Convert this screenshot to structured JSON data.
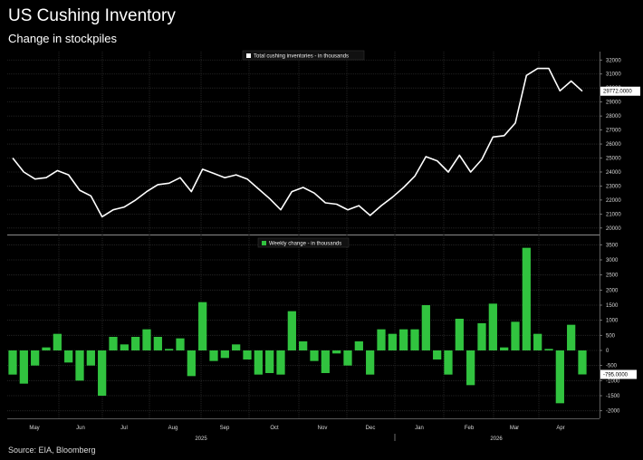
{
  "title": "US Cushing Inventory",
  "subtitle": "Change in stockpiles",
  "source": "Source: EIA, Bloomberg",
  "colors": {
    "line": "#ffffff",
    "bar": "#31c33f",
    "grid": "#2b2b2b",
    "background": "#000000"
  },
  "chart_data": [
    {
      "type": "line",
      "legend": "Total cushing inventories - in thousands",
      "legend_position": "top",
      "end_label": "29772.0000",
      "ylim": [
        19600,
        32600
      ],
      "yticks": [
        20000,
        21000,
        22000,
        23000,
        24000,
        25000,
        26000,
        27000,
        28000,
        29000,
        30000,
        31000,
        32000
      ],
      "grid": true,
      "series": [
        {
          "values": [
            25000,
            24000,
            23500,
            23600,
            24100,
            23800,
            22700,
            22300,
            20800,
            21300,
            21500,
            22000,
            22600,
            23100,
            23200,
            23600,
            22600,
            24200,
            23900,
            23600,
            23800,
            23500,
            22800,
            22100,
            21300,
            22600,
            22900,
            22500,
            21800,
            21700,
            21300,
            21600,
            20900,
            21600,
            22200,
            22900,
            23700,
            25100,
            24800,
            24000,
            25200,
            24000,
            24900,
            26500,
            26600,
            27500,
            30900,
            31400,
            31400,
            29800,
            30500,
            29772
          ]
        }
      ]
    },
    {
      "type": "bar",
      "legend": "Weekly change - in thousands",
      "legend_position": "top",
      "end_label": "-795.0000",
      "ylim": [
        -2250,
        3750
      ],
      "yticks": [
        -2000,
        -1500,
        -1000,
        -500,
        0,
        500,
        1000,
        1500,
        2000,
        2500,
        3000,
        3500
      ],
      "grid": true,
      "series": [
        {
          "values": [
            -800,
            -1100,
            -500,
            100,
            550,
            -400,
            -1000,
            -500,
            -1500,
            450,
            200,
            450,
            700,
            450,
            50,
            400,
            -850,
            1600,
            -350,
            -250,
            200,
            -300,
            -800,
            -750,
            -800,
            1300,
            300,
            -350,
            -750,
            -100,
            -500,
            300,
            -800,
            700,
            550,
            700,
            700,
            1500,
            -300,
            -800,
            1050,
            -1150,
            900,
            1550,
            100,
            950,
            3400,
            550,
            50,
            -1750,
            850,
            -795
          ]
        }
      ]
    }
  ],
  "x_axis": {
    "months": [
      "May",
      "Jun",
      "Jul",
      "Aug",
      "Sep",
      "Oct",
      "Nov",
      "Dec",
      "Jan",
      "Feb",
      "Mar",
      "Apr"
    ],
    "years": [
      "2025",
      "2026"
    ]
  }
}
